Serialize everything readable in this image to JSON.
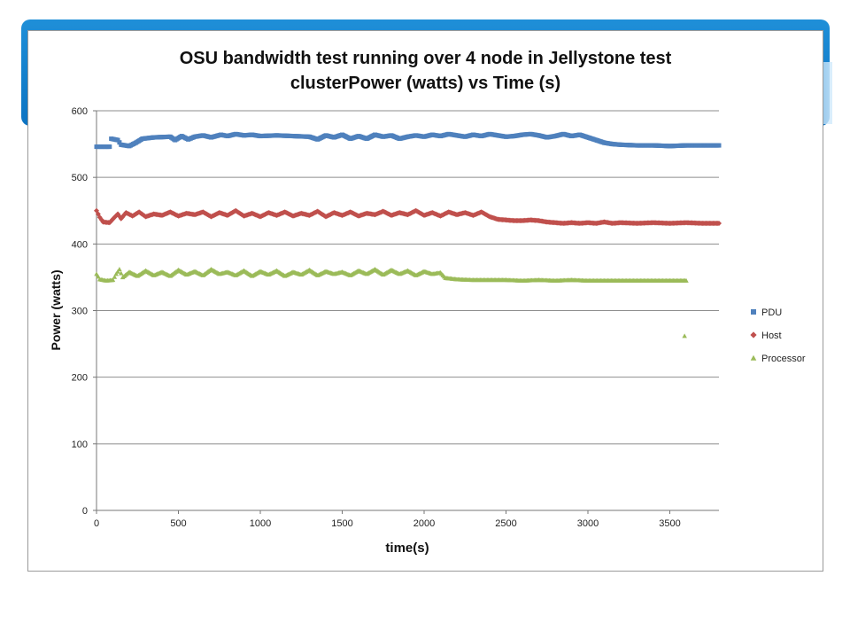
{
  "colors": {
    "banner": "#0c73c2",
    "pdu": "#4f81bd",
    "host": "#c0504d",
    "processor": "#9bbb59",
    "grid": "#8e8e8e"
  },
  "chart_data": {
    "type": "scatter",
    "title_line1": "OSU bandwidth test running over 4 node in Jellystone test",
    "title_line2": "clusterPower (watts) vs Time (s)",
    "xlabel": "time(s)",
    "ylabel": "Power (watts)",
    "xlim": [
      0,
      3800
    ],
    "ylim": [
      0,
      600
    ],
    "xticks": [
      0,
      500,
      1000,
      1500,
      2000,
      2500,
      3000,
      3500
    ],
    "yticks": [
      0,
      100,
      200,
      300,
      400,
      500,
      600
    ],
    "grid": "horizontal",
    "legend_position": "right",
    "series": [
      {
        "name": "PDU",
        "marker": "square",
        "color": "#4f81bd",
        "points": [
          [
            0,
            546
          ],
          [
            80,
            546
          ],
          [
            90,
            558
          ],
          [
            130,
            556
          ],
          [
            150,
            549
          ],
          [
            200,
            547
          ],
          [
            240,
            552
          ],
          [
            280,
            558
          ],
          [
            350,
            560
          ],
          [
            450,
            561
          ],
          [
            480,
            556
          ],
          [
            520,
            562
          ],
          [
            560,
            557
          ],
          [
            600,
            561
          ],
          [
            650,
            563
          ],
          [
            700,
            560
          ],
          [
            760,
            564
          ],
          [
            800,
            562
          ],
          [
            850,
            565
          ],
          [
            900,
            563
          ],
          [
            950,
            564
          ],
          [
            1000,
            562
          ],
          [
            1100,
            563
          ],
          [
            1200,
            562
          ],
          [
            1300,
            561
          ],
          [
            1350,
            557
          ],
          [
            1400,
            563
          ],
          [
            1450,
            560
          ],
          [
            1500,
            564
          ],
          [
            1550,
            558
          ],
          [
            1600,
            562
          ],
          [
            1650,
            558
          ],
          [
            1700,
            564
          ],
          [
            1750,
            561
          ],
          [
            1800,
            563
          ],
          [
            1850,
            558
          ],
          [
            1900,
            561
          ],
          [
            1950,
            563
          ],
          [
            2000,
            561
          ],
          [
            2050,
            564
          ],
          [
            2100,
            562
          ],
          [
            2150,
            565
          ],
          [
            2200,
            563
          ],
          [
            2250,
            561
          ],
          [
            2300,
            564
          ],
          [
            2350,
            562
          ],
          [
            2400,
            565
          ],
          [
            2450,
            563
          ],
          [
            2500,
            561
          ],
          [
            2550,
            562
          ],
          [
            2600,
            564
          ],
          [
            2650,
            565
          ],
          [
            2700,
            563
          ],
          [
            2750,
            560
          ],
          [
            2800,
            562
          ],
          [
            2850,
            565
          ],
          [
            2900,
            562
          ],
          [
            2950,
            564
          ],
          [
            3000,
            560
          ],
          [
            3050,
            556
          ],
          [
            3100,
            552
          ],
          [
            3150,
            550
          ],
          [
            3200,
            549
          ],
          [
            3300,
            548
          ],
          [
            3400,
            548
          ],
          [
            3500,
            547
          ],
          [
            3600,
            548
          ],
          [
            3700,
            548
          ],
          [
            3800,
            548
          ]
        ]
      },
      {
        "name": "Host",
        "marker": "diamond",
        "color": "#c0504d",
        "points": [
          [
            0,
            450
          ],
          [
            20,
            440
          ],
          [
            40,
            433
          ],
          [
            80,
            432
          ],
          [
            110,
            440
          ],
          [
            130,
            445
          ],
          [
            150,
            438
          ],
          [
            180,
            447
          ],
          [
            220,
            442
          ],
          [
            260,
            448
          ],
          [
            300,
            441
          ],
          [
            350,
            445
          ],
          [
            400,
            443
          ],
          [
            450,
            448
          ],
          [
            500,
            442
          ],
          [
            550,
            446
          ],
          [
            600,
            444
          ],
          [
            650,
            448
          ],
          [
            700,
            441
          ],
          [
            750,
            447
          ],
          [
            800,
            443
          ],
          [
            850,
            450
          ],
          [
            900,
            442
          ],
          [
            950,
            446
          ],
          [
            1000,
            441
          ],
          [
            1050,
            447
          ],
          [
            1100,
            443
          ],
          [
            1150,
            448
          ],
          [
            1200,
            442
          ],
          [
            1250,
            446
          ],
          [
            1300,
            443
          ],
          [
            1350,
            449
          ],
          [
            1400,
            441
          ],
          [
            1450,
            447
          ],
          [
            1500,
            443
          ],
          [
            1550,
            448
          ],
          [
            1600,
            442
          ],
          [
            1650,
            446
          ],
          [
            1700,
            444
          ],
          [
            1750,
            449
          ],
          [
            1800,
            443
          ],
          [
            1850,
            447
          ],
          [
            1900,
            444
          ],
          [
            1950,
            450
          ],
          [
            2000,
            443
          ],
          [
            2050,
            447
          ],
          [
            2100,
            442
          ],
          [
            2150,
            448
          ],
          [
            2200,
            444
          ],
          [
            2250,
            447
          ],
          [
            2300,
            443
          ],
          [
            2350,
            448
          ],
          [
            2400,
            441
          ],
          [
            2450,
            437
          ],
          [
            2500,
            436
          ],
          [
            2550,
            435
          ],
          [
            2600,
            435
          ],
          [
            2650,
            436
          ],
          [
            2700,
            435
          ],
          [
            2750,
            433
          ],
          [
            2800,
            432
          ],
          [
            2850,
            431
          ],
          [
            2900,
            432
          ],
          [
            2950,
            431
          ],
          [
            3000,
            432
          ],
          [
            3050,
            431
          ],
          [
            3100,
            433
          ],
          [
            3150,
            431
          ],
          [
            3200,
            432
          ],
          [
            3300,
            431
          ],
          [
            3400,
            432
          ],
          [
            3500,
            431
          ],
          [
            3600,
            432
          ],
          [
            3700,
            431
          ],
          [
            3800,
            431
          ]
        ]
      },
      {
        "name": "Processor",
        "marker": "triangle",
        "color": "#9bbb59",
        "points": [
          [
            0,
            355
          ],
          [
            20,
            347
          ],
          [
            60,
            345
          ],
          [
            100,
            346
          ],
          [
            120,
            355
          ],
          [
            140,
            362
          ],
          [
            160,
            350
          ],
          [
            200,
            358
          ],
          [
            250,
            352
          ],
          [
            300,
            360
          ],
          [
            350,
            353
          ],
          [
            400,
            358
          ],
          [
            450,
            352
          ],
          [
            500,
            361
          ],
          [
            550,
            354
          ],
          [
            600,
            359
          ],
          [
            650,
            353
          ],
          [
            700,
            362
          ],
          [
            750,
            355
          ],
          [
            800,
            358
          ],
          [
            850,
            353
          ],
          [
            900,
            360
          ],
          [
            950,
            352
          ],
          [
            1000,
            359
          ],
          [
            1050,
            354
          ],
          [
            1100,
            360
          ],
          [
            1150,
            352
          ],
          [
            1200,
            358
          ],
          [
            1250,
            354
          ],
          [
            1300,
            361
          ],
          [
            1350,
            353
          ],
          [
            1400,
            359
          ],
          [
            1450,
            355
          ],
          [
            1500,
            358
          ],
          [
            1550,
            353
          ],
          [
            1600,
            360
          ],
          [
            1650,
            355
          ],
          [
            1700,
            362
          ],
          [
            1750,
            354
          ],
          [
            1800,
            361
          ],
          [
            1850,
            355
          ],
          [
            1900,
            360
          ],
          [
            1950,
            353
          ],
          [
            2000,
            359
          ],
          [
            2050,
            355
          ],
          [
            2100,
            357
          ],
          [
            2130,
            349
          ],
          [
            2200,
            347
          ],
          [
            2300,
            346
          ],
          [
            2400,
            346
          ],
          [
            2500,
            346
          ],
          [
            2600,
            345
          ],
          [
            2700,
            346
          ],
          [
            2800,
            345
          ],
          [
            2900,
            346
          ],
          [
            3000,
            345
          ],
          [
            3100,
            345
          ],
          [
            3200,
            345
          ],
          [
            3300,
            345
          ],
          [
            3400,
            345
          ],
          [
            3500,
            345
          ],
          [
            3600,
            345
          ],
          [
            3590,
            262
          ]
        ]
      }
    ]
  }
}
